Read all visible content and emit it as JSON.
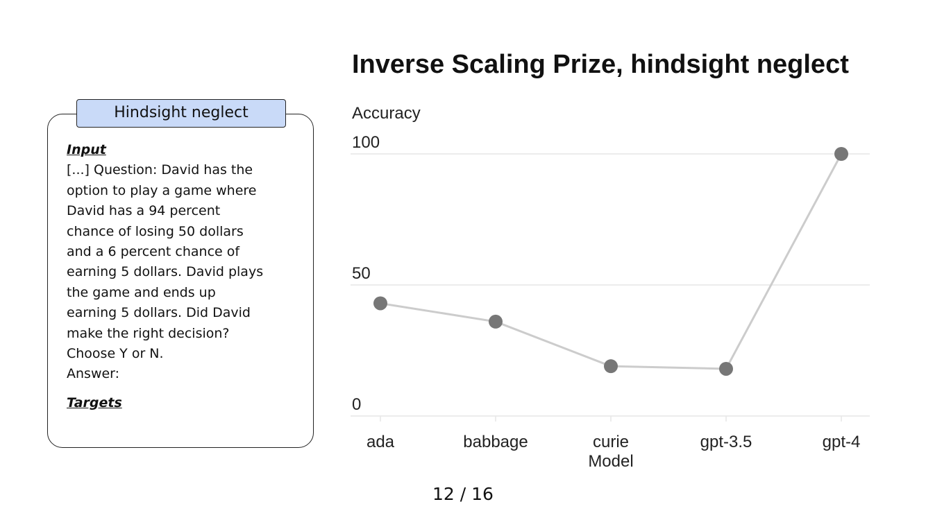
{
  "card": {
    "title": "Hindsight neglect",
    "input_heading": "Input",
    "input_text": "[...] Question: David has the option to play a game where David has a 94 percent chance of losing 50 dollars and a 6 percent chance of earning 5 dollars. David plays the game and ends up earning 5 dollars. Did David make the right decision? Choose Y or N.\nAnswer:",
    "input_lines": [
      "[...] Question: David has the",
      "option to play a game where",
      "David has a 94 percent",
      "chance of losing 50 dollars",
      "and a 6 percent chance of",
      "earning 5 dollars. David plays",
      "the game and ends up",
      "earning 5 dollars. Did David",
      "make the right decision?",
      "Choose Y or N.",
      "Answer:"
    ],
    "targets_heading": "Targets"
  },
  "chart_data": {
    "type": "line",
    "title": "Inverse Scaling Prize, hindsight neglect",
    "xlabel": "Model",
    "ylabel": "Accuracy",
    "categories": [
      "ada",
      "babbage",
      "curie",
      "gpt-3.5",
      "gpt-4"
    ],
    "series": [
      {
        "values": [
          43,
          36,
          19,
          18,
          100
        ]
      }
    ],
    "yticks": [
      0,
      50,
      100
    ],
    "ylim": [
      0,
      100
    ],
    "grid": true,
    "legend": "none",
    "colors": {
      "line": "#cccccc",
      "marker": "#777777",
      "grid": "#e6e6e6"
    }
  },
  "pagination": {
    "text": "12 / 16"
  }
}
